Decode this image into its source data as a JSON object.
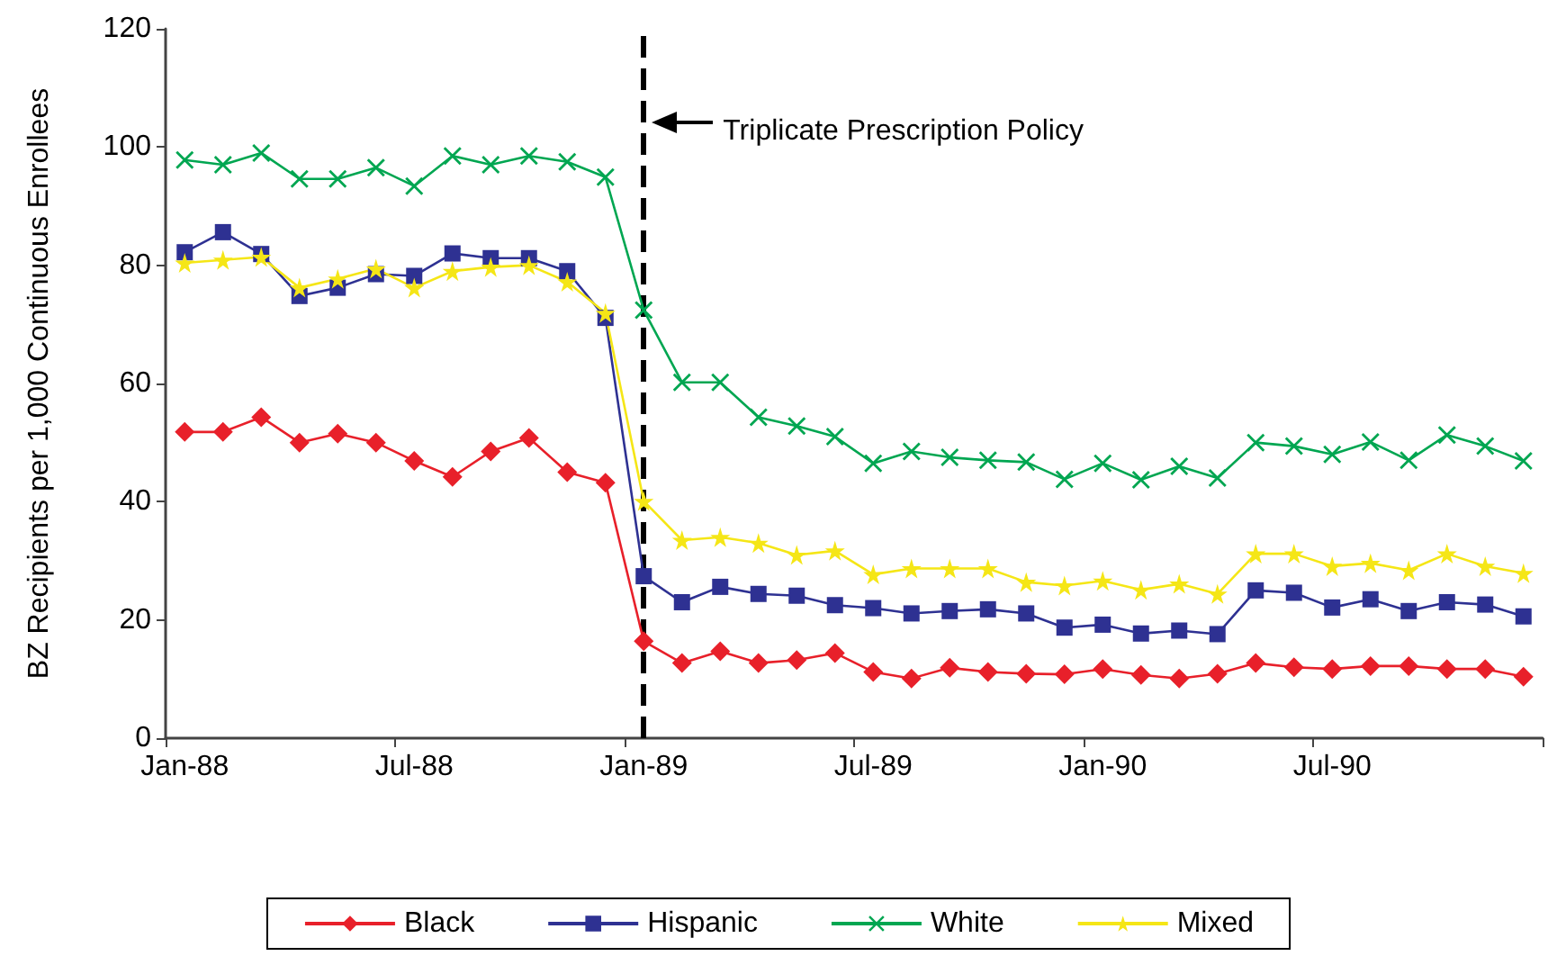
{
  "chart_data": {
    "type": "line",
    "ylabel": "BZ Recipients per 1,000 Continuous Enrollees",
    "categories": [
      "Jan-88",
      null,
      null,
      null,
      null,
      null,
      "Jul-88",
      null,
      null,
      null,
      null,
      null,
      "Jan-89",
      null,
      null,
      null,
      null,
      null,
      "Jul-89",
      null,
      null,
      null,
      null,
      null,
      "Jan-90",
      null,
      null,
      null,
      null,
      null,
      "Jul-90",
      null,
      null,
      null,
      null,
      null
    ],
    "series": [
      {
        "name": "Black",
        "color": "#e8202a",
        "marker": "diamond",
        "values": [
          51.8,
          51.8,
          54.3,
          50.0,
          51.5,
          50.0,
          46.9,
          44.2,
          48.5,
          50.8,
          45.0,
          43.2,
          16.4,
          12.7,
          14.7,
          12.7,
          13.2,
          14.4,
          11.2,
          10.1,
          11.9,
          11.2,
          10.9,
          10.8,
          11.7,
          10.7,
          10.1,
          10.9,
          12.7,
          12.0,
          11.7,
          12.2,
          12.2,
          11.7,
          11.7,
          10.4
        ]
      },
      {
        "name": "Hispanic",
        "color": "#2e3192",
        "marker": "square",
        "values": [
          82.2,
          85.6,
          81.9,
          74.8,
          76.2,
          78.5,
          78.2,
          82.0,
          81.2,
          81.2,
          79.0,
          71.1,
          27.4,
          23.0,
          25.6,
          24.4,
          24.1,
          22.5,
          22.0,
          21.1,
          21.5,
          21.8,
          21.1,
          18.7,
          19.2,
          17.7,
          18.2,
          17.6,
          25.0,
          24.6,
          22.1,
          23.5,
          21.5,
          23.0,
          22.6,
          20.6
        ]
      },
      {
        "name": "White",
        "color": "#00a651",
        "marker": "cross",
        "values": [
          97.8,
          97.0,
          99.0,
          94.6,
          94.6,
          96.5,
          93.4,
          98.5,
          97.0,
          98.5,
          97.5,
          94.9,
          72.4,
          60.2,
          60.2,
          54.3,
          52.8,
          51.0,
          46.5,
          48.5,
          47.5,
          47.0,
          46.7,
          43.8,
          46.5,
          43.7,
          46.0,
          44.0,
          50.0,
          49.4,
          48.0,
          50.1,
          47.0,
          51.3,
          49.4,
          46.9
        ]
      },
      {
        "name": "Mixed",
        "color": "#f5e616",
        "marker": "star",
        "values": [
          80.4,
          80.9,
          81.4,
          76.2,
          77.7,
          79.4,
          76.2,
          79.0,
          79.7,
          80.0,
          77.2,
          71.9,
          40.1,
          33.5,
          34.0,
          33.0,
          31.0,
          31.7,
          27.7,
          28.7,
          28.7,
          28.7,
          26.4,
          25.8,
          26.6,
          25.1,
          26.1,
          24.4,
          31.2,
          31.2,
          29.1,
          29.6,
          28.4,
          31.2,
          29.1,
          27.9
        ]
      }
    ],
    "ylim": [
      0,
      120
    ],
    "yticks": [
      0,
      20,
      40,
      60,
      80,
      100,
      120
    ],
    "grid": false,
    "legend": "bottom",
    "ref_lines": [
      {
        "axis": "x",
        "value": "Jan-89",
        "label": "Triplicate Prescription Policy",
        "line_style": "dashed",
        "color": "#000000"
      }
    ]
  }
}
